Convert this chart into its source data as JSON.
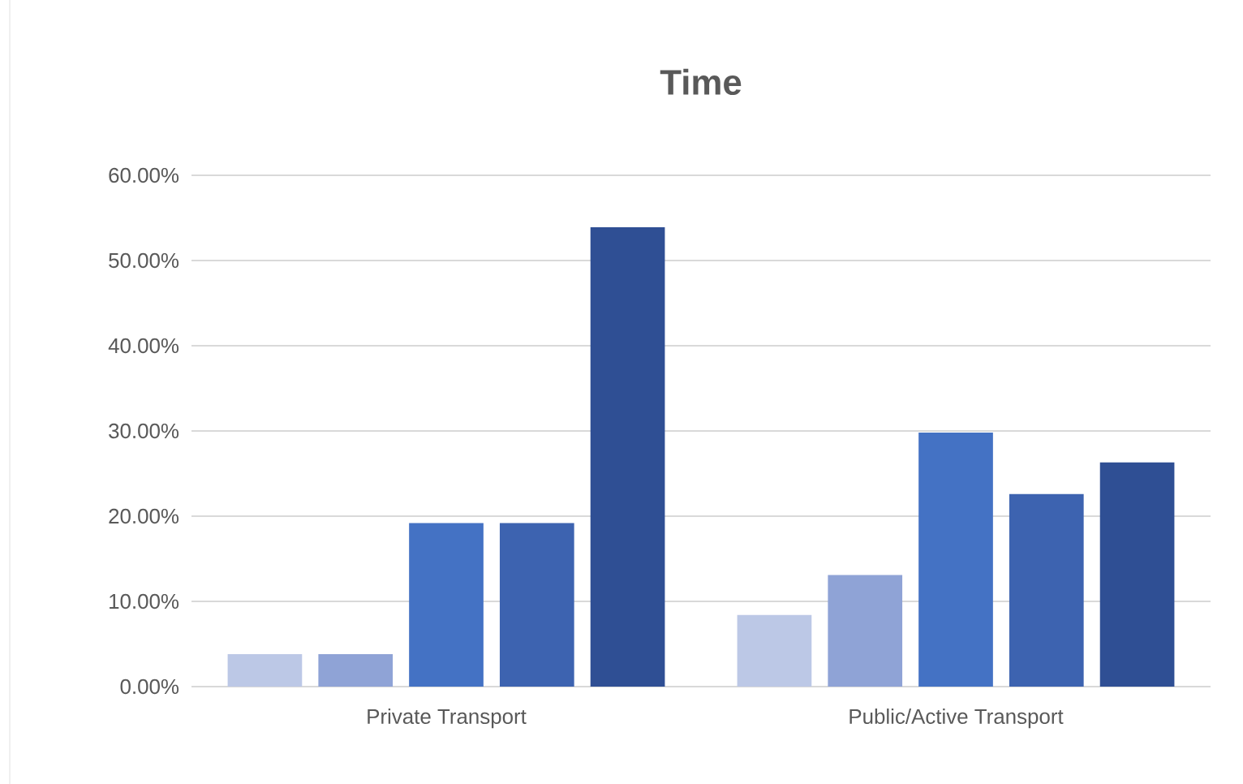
{
  "chart_data": {
    "type": "bar",
    "title": "Time",
    "categories": [
      "Private Transport",
      "Public/Active Transport"
    ],
    "series": [
      {
        "color": "#bcc8e6",
        "values": [
          3.8,
          8.4
        ]
      },
      {
        "color": "#8fa3d6",
        "values": [
          3.8,
          13.1
        ]
      },
      {
        "color": "#4472c4",
        "values": [
          19.2,
          29.8
        ]
      },
      {
        "color": "#3d63b0",
        "values": [
          19.2,
          22.6
        ]
      },
      {
        "color": "#2f4f94",
        "values": [
          53.9,
          26.3
        ]
      }
    ],
    "ylim": [
      0,
      60
    ],
    "yticks": [
      {
        "value": 0,
        "label": "0.00%"
      },
      {
        "value": 10,
        "label": "10.00%"
      },
      {
        "value": 20,
        "label": "20.00%"
      },
      {
        "value": 30,
        "label": "30.00%"
      },
      {
        "value": 40,
        "label": "40.00%"
      },
      {
        "value": 50,
        "label": "50.00%"
      },
      {
        "value": 60,
        "label": "60.00%"
      }
    ],
    "grid": "y"
  }
}
